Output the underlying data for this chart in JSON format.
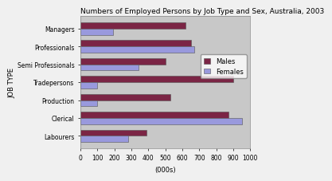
{
  "title": "Numbers of Employed Persons by Job Type and Sex, Australia, 2003",
  "categories": [
    "Managers",
    "Professionals",
    "Semi Professionals",
    "Tradepersons",
    "Production",
    "Clerical",
    "Labourers"
  ],
  "males": [
    620,
    650,
    500,
    900,
    530,
    870,
    390
  ],
  "females": [
    190,
    670,
    340,
    100,
    100,
    950,
    280
  ],
  "male_color": "#7B2545",
  "female_color": "#9999DD",
  "plot_bg_color": "#C8C8C8",
  "fig_bg_color": "#F0F0F0",
  "xlabel": "(000s)",
  "ylabel": "JOB TYPE",
  "xlim": [
    0,
    1000
  ],
  "xticks": [
    0,
    100,
    200,
    300,
    400,
    500,
    600,
    700,
    800,
    900,
    1000
  ],
  "title_fontsize": 6.5,
  "axis_label_fontsize": 6,
  "tick_fontsize": 5.5,
  "legend_fontsize": 6
}
